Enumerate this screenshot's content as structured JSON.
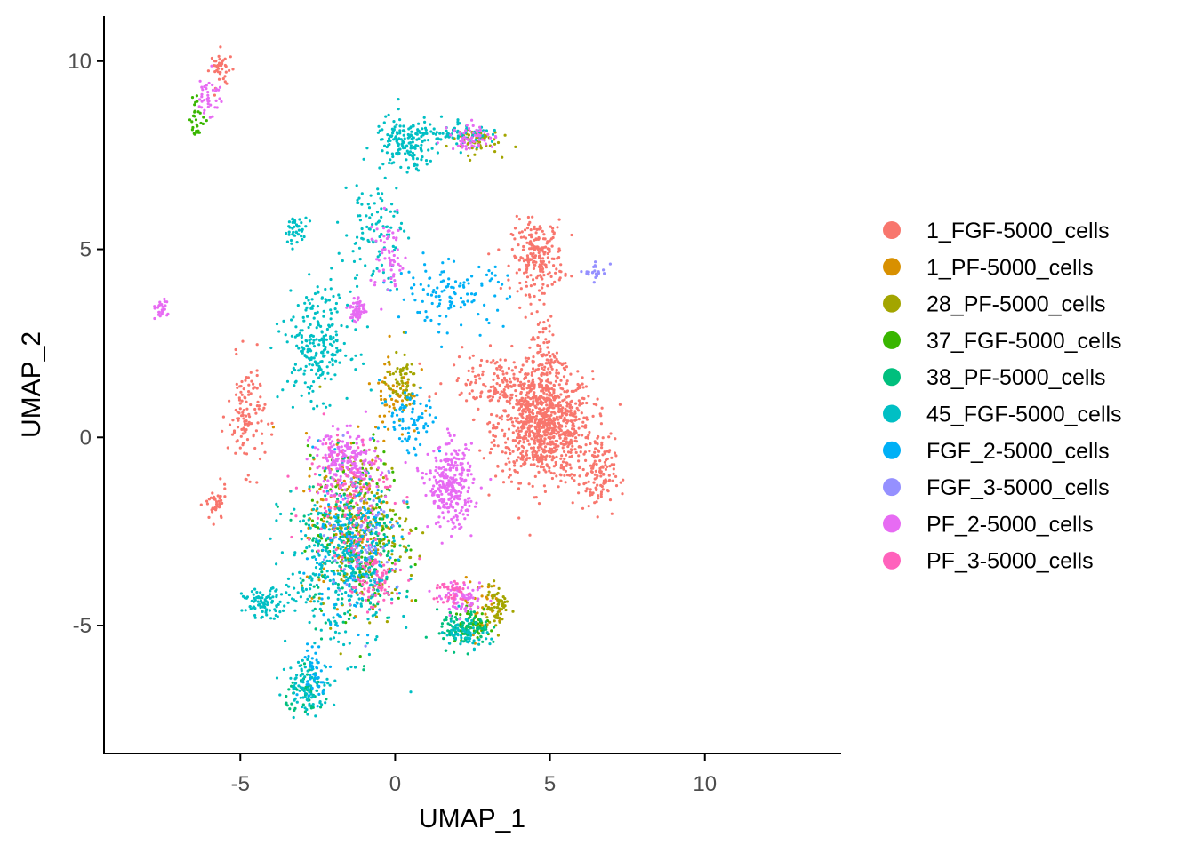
{
  "chart_data": {
    "type": "scatter",
    "title": "",
    "xlabel": "UMAP_1",
    "ylabel": "UMAP_2",
    "xlim": [
      -9.4,
      14.4
    ],
    "ylim": [
      -8.4,
      11.2
    ],
    "xticks": [
      -5,
      0,
      5,
      10
    ],
    "xtick_labels": [
      "-5",
      "0",
      "5",
      "10"
    ],
    "yticks": [
      -5,
      0,
      5,
      10
    ],
    "ytick_labels": [
      "-5",
      "0",
      "5",
      "10"
    ],
    "grid": false,
    "legend_position": "right",
    "series": [
      {
        "name": "1_FGF-5000_cells",
        "color": "#F8766D",
        "clusters": [
          [
            4.8,
            0.3,
            1.3,
            1.2,
            900
          ],
          [
            4.6,
            4.8,
            0.7,
            0.8,
            220
          ],
          [
            -5.6,
            9.8,
            0.3,
            0.4,
            40
          ],
          [
            -4.8,
            0.6,
            0.5,
            1.2,
            120
          ],
          [
            -5.8,
            -1.8,
            0.3,
            0.4,
            40
          ],
          [
            3.5,
            1.5,
            1.5,
            0.6,
            150
          ],
          [
            6.5,
            -1.0,
            0.5,
            0.8,
            120
          ],
          [
            4.8,
            2.2,
            0.4,
            0.9,
            80
          ]
        ]
      },
      {
        "name": "1_PF-5000_cells",
        "color": "#D89000",
        "clusters": [
          [
            -1.5,
            -2.0,
            1.2,
            1.8,
            150
          ],
          [
            0.0,
            1.2,
            0.6,
            1.0,
            60
          ],
          [
            2.8,
            -4.5,
            0.6,
            0.6,
            40
          ]
        ]
      },
      {
        "name": "28_PF-5000_cells",
        "color": "#A3A500",
        "clusters": [
          [
            -1.0,
            -2.5,
            1.2,
            1.8,
            200
          ],
          [
            3.3,
            -4.5,
            0.3,
            0.5,
            60
          ],
          [
            2.5,
            7.9,
            0.7,
            0.3,
            60
          ],
          [
            0.2,
            1.5,
            0.4,
            0.6,
            60
          ]
        ]
      },
      {
        "name": "37_FGF-5000_cells",
        "color": "#39B600",
        "clusters": [
          [
            -1.2,
            -2.5,
            1.3,
            1.8,
            150
          ],
          [
            -6.4,
            8.5,
            0.2,
            0.5,
            30
          ],
          [
            2.5,
            -5.0,
            0.6,
            0.4,
            50
          ]
        ]
      },
      {
        "name": "38_PF-5000_cells",
        "color": "#00BF7D",
        "clusters": [
          [
            -1.5,
            -2.8,
            1.3,
            1.8,
            170
          ],
          [
            2.2,
            -5.1,
            0.7,
            0.4,
            90
          ],
          [
            -2.8,
            -6.8,
            0.6,
            0.5,
            50
          ]
        ]
      },
      {
        "name": "45_FGF-5000_cells",
        "color": "#00BFC4",
        "clusters": [
          [
            0.3,
            7.8,
            0.8,
            0.6,
            160
          ],
          [
            -2.5,
            2.5,
            0.9,
            1.2,
            240
          ],
          [
            -1.8,
            -3.5,
            1.5,
            1.8,
            320
          ],
          [
            -4.2,
            -4.4,
            0.6,
            0.3,
            90
          ],
          [
            -2.8,
            -6.6,
            0.6,
            0.6,
            90
          ],
          [
            -3.2,
            5.5,
            0.3,
            0.3,
            40
          ],
          [
            2.3,
            -5.2,
            0.6,
            0.3,
            60
          ],
          [
            2.0,
            8.1,
            1.0,
            0.3,
            70
          ],
          [
            -0.7,
            5.5,
            0.8,
            1.2,
            100
          ]
        ]
      },
      {
        "name": "FGF_2-5000_cells",
        "color": "#00B0F6",
        "clusters": [
          [
            -1.5,
            -3.0,
            1.3,
            1.6,
            150
          ],
          [
            1.8,
            3.8,
            1.5,
            0.7,
            120
          ],
          [
            -2.6,
            -6.2,
            0.4,
            0.6,
            40
          ],
          [
            0.5,
            0.5,
            0.8,
            0.8,
            80
          ]
        ]
      },
      {
        "name": "FGF_3-5000_cells",
        "color": "#9590FF",
        "clusters": [
          [
            -1.0,
            -2.5,
            1.0,
            1.5,
            80
          ],
          [
            6.5,
            4.4,
            0.3,
            0.2,
            25
          ]
        ]
      },
      {
        "name": "PF_2-5000_cells",
        "color": "#E76BF3",
        "clusters": [
          [
            1.8,
            -1.3,
            0.6,
            0.9,
            300
          ],
          [
            -1.6,
            -0.7,
            0.9,
            0.7,
            220
          ],
          [
            -1.2,
            3.4,
            0.2,
            0.3,
            60
          ],
          [
            -6.0,
            9.1,
            0.3,
            0.5,
            40
          ],
          [
            2.2,
            -4.3,
            0.6,
            0.3,
            70
          ],
          [
            -0.2,
            4.7,
            0.5,
            0.9,
            60
          ],
          [
            2.5,
            8.0,
            0.6,
            0.3,
            60
          ],
          [
            -7.6,
            3.4,
            0.2,
            0.2,
            25
          ]
        ]
      },
      {
        "name": "PF_3-5000_cells",
        "color": "#FF62BC",
        "clusters": [
          [
            -1.5,
            -1.5,
            1.2,
            1.5,
            120
          ],
          [
            -0.8,
            -3.8,
            0.8,
            0.8,
            80
          ],
          [
            1.8,
            -4.1,
            0.5,
            0.3,
            40
          ]
        ]
      }
    ]
  }
}
